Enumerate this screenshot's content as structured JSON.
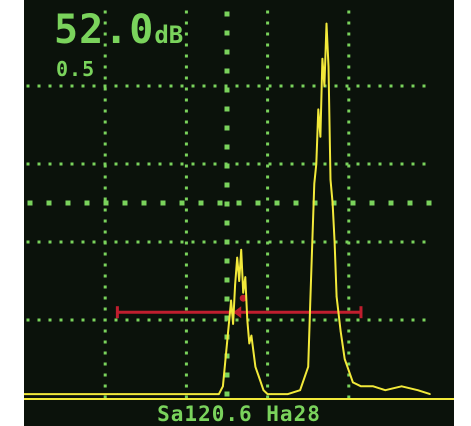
{
  "display": {
    "gain_value": "52.0",
    "gain_unit": "dB",
    "gain_step": "0.5",
    "status_line": "Sa120.6 Ha28"
  },
  "colors": {
    "background": "#0b120b",
    "grid": "#7ad35c",
    "text": "#7ad35c",
    "waveform": "#f2e93a",
    "gate": "#c01e2e"
  },
  "chart_data": {
    "type": "line",
    "title": "",
    "xlabel": "",
    "ylabel": "",
    "grid": true,
    "xlim": [
      0,
      10
    ],
    "ylim": [
      0,
      100
    ],
    "series": [
      {
        "x": [
          0,
          2.3,
          4.8,
          4.9,
          5.0,
          5.1,
          5.15,
          5.2,
          5.25,
          5.3,
          5.35,
          5.4,
          5.45,
          5.5,
          5.55,
          5.6,
          5.7,
          5.8,
          5.9,
          6.0,
          6.1,
          6.5,
          6.8,
          7.0,
          7.05,
          7.1,
          7.15,
          7.2,
          7.25,
          7.3,
          7.35,
          7.4,
          7.45,
          7.5,
          7.55,
          7.6,
          7.65,
          7.7,
          7.8,
          7.9,
          8.0,
          8.1,
          8.3,
          8.6,
          8.9,
          9.3,
          9.7,
          10.0
        ],
        "y": [
          1,
          1,
          1,
          3,
          14,
          25,
          19,
          29,
          36,
          30,
          38,
          27,
          31,
          20,
          14,
          16,
          8,
          5,
          2,
          1,
          1,
          1,
          2,
          8,
          24,
          40,
          55,
          60,
          74,
          67,
          87,
          80,
          96,
          85,
          56,
          50,
          40,
          26,
          17,
          10,
          7,
          4,
          3,
          3,
          2,
          3,
          2,
          1
        ]
      }
    ],
    "gate": {
      "start": 2.3,
      "end": 8.3,
      "level": 22,
      "marker": 5.35
    }
  }
}
